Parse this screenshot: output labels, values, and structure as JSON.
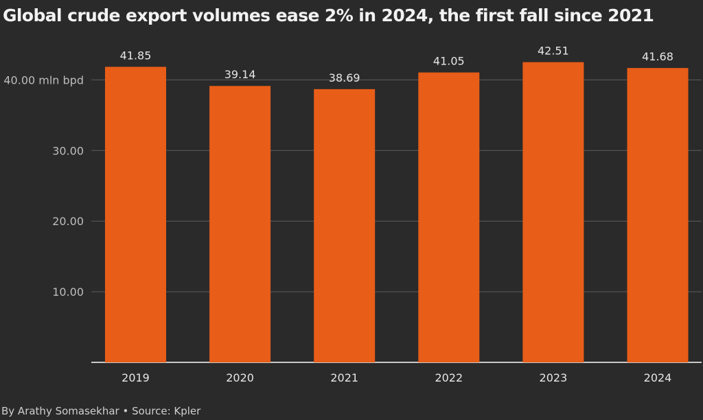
{
  "title": "Global crude export volumes ease 2% in 2024, the first fall since 2021",
  "footer": "By Arathy Somasekhar • Source: Kpler",
  "colors": {
    "bar": "#e85d18",
    "background": "#2a2a2a",
    "grid": "#5e5e5e",
    "axis": "#ffffff"
  },
  "chart_data": {
    "type": "bar",
    "categories": [
      "2019",
      "2020",
      "2021",
      "2022",
      "2023",
      "2024"
    ],
    "values": [
      41.85,
      39.14,
      38.69,
      41.05,
      42.51,
      41.68
    ],
    "data_labels": [
      "41.85",
      "39.14",
      "38.69",
      "41.05",
      "42.51",
      "41.68"
    ],
    "y_ticks": [
      10,
      20,
      30,
      40
    ],
    "y_tick_labels": [
      "10.00",
      "20.00",
      "30.00",
      "40.00 mln bpd"
    ],
    "ylim": [
      0,
      40
    ],
    "grid": true
  }
}
